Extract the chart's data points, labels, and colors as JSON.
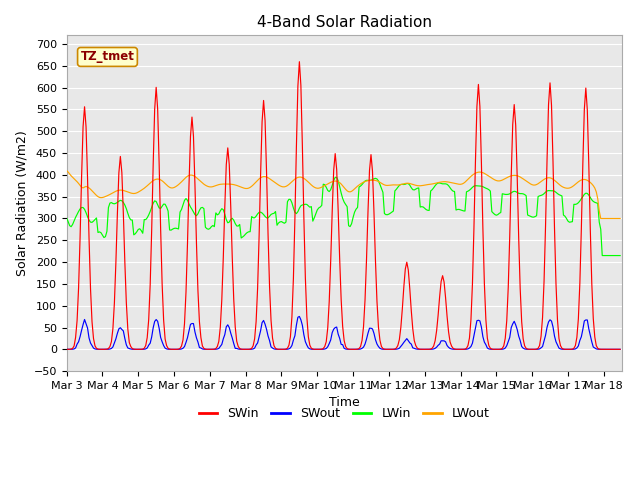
{
  "title": "4-Band Solar Radiation",
  "xlabel": "Time",
  "ylabel": "Solar Radiation (W/m2)",
  "ylim": [
    -50,
    720
  ],
  "n_days": 15.5,
  "annotation": "TZ_tmet",
  "x_tick_labels": [
    "Mar 3",
    "Mar 4",
    "Mar 5",
    "Mar 6",
    "Mar 7",
    "Mar 8",
    "Mar 9",
    "Mar 10",
    "Mar 11",
    "Mar 12",
    "Mar 13",
    "Mar 14",
    "Mar 15",
    "Mar 16",
    "Mar 17",
    "Mar 18"
  ],
  "legend": [
    {
      "label": "SWin",
      "color": "#ff0000"
    },
    {
      "label": "SWout",
      "color": "#0000ff"
    },
    {
      "label": "LWin",
      "color": "#00ff00"
    },
    {
      "label": "LWout",
      "color": "#ffa500"
    }
  ],
  "swin_peaks": [
    555,
    445,
    600,
    530,
    460,
    570,
    660,
    450,
    450,
    200,
    170,
    610,
    560,
    610,
    600
  ],
  "plot_bg": "#e8e8e8",
  "grid_color": "#ffffff",
  "title_fontsize": 11,
  "axis_fontsize": 9,
  "tick_fontsize": 8
}
